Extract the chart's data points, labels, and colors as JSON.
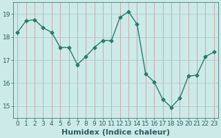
{
  "x": [
    0,
    1,
    2,
    3,
    4,
    5,
    6,
    7,
    8,
    9,
    10,
    11,
    12,
    13,
    14,
    15,
    16,
    17,
    18,
    19,
    20,
    21,
    22,
    23
  ],
  "y": [
    18.2,
    18.7,
    18.75,
    18.4,
    18.2,
    17.55,
    17.55,
    16.8,
    17.15,
    17.55,
    17.85,
    17.85,
    18.85,
    19.1,
    18.55,
    16.4,
    16.05,
    15.3,
    14.95,
    15.35,
    16.3,
    16.35,
    17.15,
    17.35
  ],
  "line_color": "#2a7a6a",
  "marker": "D",
  "markersize": 2.5,
  "linewidth": 1.0,
  "bg_color": "#cceae8",
  "grid_color_v": "#c8a0a0",
  "grid_color_h": "#b0c8c8",
  "tick_color": "#2a6060",
  "xlabel": "Humidex (Indice chaleur)",
  "xlabel_fontsize": 8,
  "tick_fontsize": 6.5,
  "ylim": [
    14.5,
    19.5
  ],
  "yticks": [
    15,
    16,
    17,
    18,
    19
  ],
  "xlim": [
    -0.5,
    23.5
  ],
  "xticks": [
    0,
    1,
    2,
    3,
    4,
    5,
    6,
    7,
    8,
    9,
    10,
    11,
    12,
    13,
    14,
    15,
    16,
    17,
    18,
    19,
    20,
    21,
    22,
    23
  ]
}
